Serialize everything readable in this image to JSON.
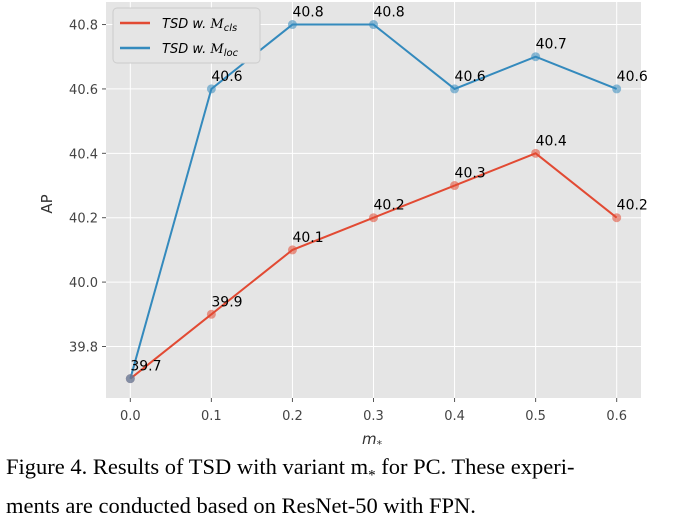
{
  "chart_data": {
    "type": "line",
    "xlabel": "m",
    "xlabel_sub": "*",
    "ylabel": "AP",
    "x": [
      0.0,
      0.1,
      0.2,
      0.3,
      0.4,
      0.5,
      0.6
    ],
    "x_tick_labels": [
      "0.0",
      "0.1",
      "0.2",
      "0.3",
      "0.4",
      "0.5",
      "0.6"
    ],
    "y_ticks": [
      39.8,
      40.0,
      40.2,
      40.4,
      40.6,
      40.8
    ],
    "y_tick_labels": [
      "39.8",
      "40.0",
      "40.2",
      "40.4",
      "40.6",
      "40.8"
    ],
    "xlim": [
      -0.03,
      0.63
    ],
    "ylim": [
      39.64,
      40.87
    ],
    "grid": true,
    "legend_position": "top-left",
    "series": [
      {
        "name_main": "TSD w. ",
        "name_math": "M",
        "name_sub": "cls",
        "color": "#e24a33",
        "values": [
          39.7,
          39.9,
          40.1,
          40.2,
          40.3,
          40.4,
          40.2
        ],
        "labels": [
          "39.7",
          "39.9",
          "40.1",
          "40.2",
          "40.3",
          "40.4",
          "40.2"
        ]
      },
      {
        "name_main": "TSD w. ",
        "name_math": "M",
        "name_sub": "loc",
        "color": "#348abd",
        "values": [
          39.7,
          40.6,
          40.8,
          40.8,
          40.6,
          40.7,
          40.6
        ],
        "labels": [
          "",
          "40.6",
          "40.8",
          "40.8",
          "40.6",
          "40.7",
          "40.6"
        ]
      }
    ]
  },
  "caption": {
    "line1": "Figure 4. Results of TSD with variant m",
    "line1_sub": "*",
    "line1_rest": " for PC. These experi-",
    "line2": "ments are conducted based on ResNet-50 with FPN."
  }
}
